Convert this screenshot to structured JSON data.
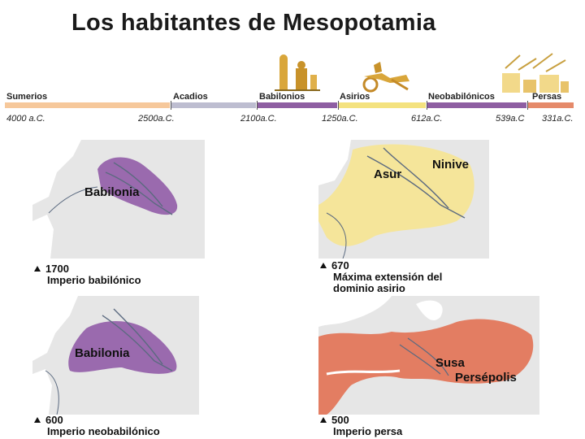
{
  "title": "Los habitantes de Mesopotamia",
  "timeline": {
    "periods": [
      {
        "label": "Sumerios",
        "color": "#f6c89b"
      },
      {
        "label": "Acadios",
        "color": "#bdbdd0"
      },
      {
        "label": "Babilonios",
        "color": "#8e5ea2"
      },
      {
        "label": "Asirios",
        "color": "#f4e27f"
      },
      {
        "label": "Neobabilónicos",
        "color": "#8e5ea2"
      },
      {
        "label": "Persas",
        "color": "#e58a6a"
      }
    ],
    "dates": [
      "4000 a.C.",
      "2500a.C.",
      "2100a.C.",
      "1250a.C.",
      "612a.C.",
      "539a.C",
      "331a.C."
    ]
  },
  "maps": [
    {
      "label": "Babilonia",
      "year": "1700",
      "caption": [
        "Imperio babilónico"
      ],
      "color": "#9a6aae"
    },
    {
      "label_1": "Asur",
      "label_2": "Ninive",
      "year": "670",
      "caption": [
        "Máxima extensión del",
        "dominio asirio"
      ],
      "color": "#f5e59a"
    },
    {
      "label": "Babilonia",
      "year": "600",
      "caption": [
        "Imperio neobabilónico"
      ],
      "color": "#9a6aae"
    },
    {
      "label_1": "Susa",
      "label_2": "Persépolis",
      "year": "500",
      "caption": [
        "Imperio persa"
      ],
      "color": "#e37d62"
    }
  ],
  "icons": [
    "sumerian-figures-icon",
    "chariot-icon",
    "persian-palace-icon"
  ]
}
